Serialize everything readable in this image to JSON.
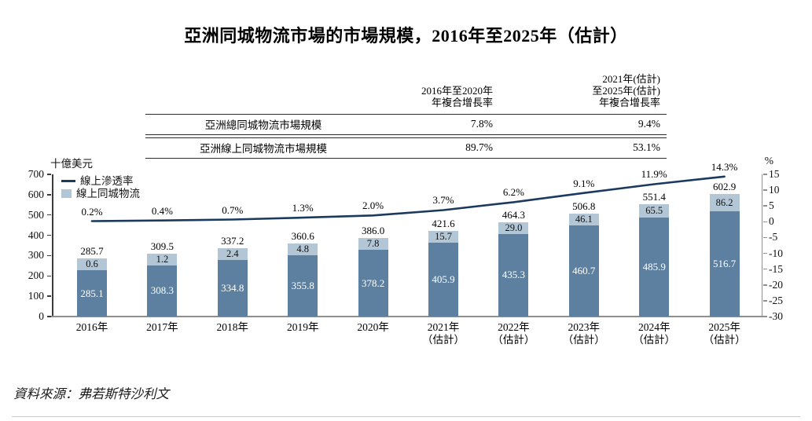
{
  "page": {
    "source": "資料來源：弗若斯特沙利文"
  },
  "table": {
    "col_headers": [
      "2016年至2020年\n年複合增長率",
      "2021年(估計)\n至2025年(估計)\n年複合增長率"
    ],
    "rows": [
      {
        "label": "亞洲總同城物流市場規模",
        "values": [
          "7.8%",
          "9.4%"
        ]
      },
      {
        "label": "亞洲線上同城物流市場規模",
        "values": [
          "89.7%",
          "53.1%"
        ]
      }
    ]
  },
  "chart_data": {
    "type": "bar+line",
    "title": "亞洲同城物流市場的市場規模，2016年至2025年（估計）",
    "left_axis": {
      "title": "十億美元",
      "min": 0,
      "max": 700,
      "ticks": [
        700,
        600,
        500,
        400,
        300,
        200,
        100,
        0
      ]
    },
    "right_axis": {
      "title": "%",
      "min": -30,
      "max": 15,
      "ticks": [
        15,
        10,
        5,
        0,
        -5,
        -10,
        -15,
        -20,
        -25,
        -30
      ]
    },
    "legend": [
      {
        "label": "線上滲透率",
        "type": "line",
        "color": "#1b3a5e"
      },
      {
        "label": "線上同城物流",
        "type": "square",
        "color": "#b3c6d6"
      }
    ],
    "grid": false,
    "categories": [
      [
        "2016年"
      ],
      [
        "2017年"
      ],
      [
        "2018年"
      ],
      [
        "2019年"
      ],
      [
        "2020年"
      ],
      [
        "2021年",
        "（估計）"
      ],
      [
        "2022年",
        "（估計）"
      ],
      [
        "2023年",
        "（估計）"
      ],
      [
        "2024年",
        "（估計）"
      ],
      [
        "2025年",
        "（估計）"
      ]
    ],
    "series": [
      {
        "name": "總市場規模(柱頂標籤)",
        "values": [
          "285.7",
          "309.5",
          "337.2",
          "360.6",
          "386.0",
          "421.6",
          "464.3",
          "506.8",
          "551.4",
          "602.9"
        ]
      },
      {
        "name": "線上同城物流",
        "values": [
          "0.6",
          "1.2",
          "2.4",
          "4.8",
          "7.8",
          "15.7",
          "29.0",
          "46.1",
          "65.5",
          "86.2"
        ]
      },
      {
        "name": "線下部分(柱內白字)",
        "values": [
          "285.1",
          "308.3",
          "334.8",
          "355.8",
          "378.2",
          "405.9",
          "435.3",
          "460.7",
          "485.9",
          "516.7"
        ]
      },
      {
        "name": "線上滲透率",
        "values": [
          "0.2%",
          "0.4%",
          "0.7%",
          "1.3%",
          "2.0%",
          "3.7%",
          "6.2%",
          "9.1%",
          "11.9%",
          "14.3%"
        ]
      }
    ],
    "colors": {
      "bar_dark": "#5d80a0",
      "bar_light": "#b3c6d6",
      "line": "#1b3a5e"
    }
  }
}
